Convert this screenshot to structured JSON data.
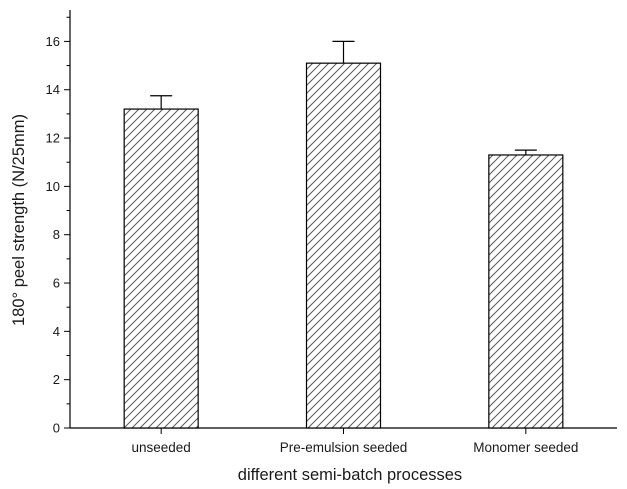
{
  "chart_data": {
    "type": "bar",
    "categories": [
      "unseeded",
      "Pre-emulsion seeded",
      "Monomer seeded"
    ],
    "values": [
      13.2,
      15.1,
      11.3
    ],
    "errors": [
      0.55,
      0.9,
      0.2
    ],
    "xlabel": "different semi-batch processes",
    "ylabel": "180° peel strength (N/25mm)",
    "ylim": [
      0,
      17.3
    ],
    "yticks": [
      0,
      2,
      4,
      6,
      8,
      10,
      12,
      14,
      16
    ],
    "grid": false,
    "legend": "none",
    "bar_fill": "diagonal-hatch",
    "colors": {
      "stroke": "#000000",
      "hatch": "#5a5a5a"
    }
  }
}
